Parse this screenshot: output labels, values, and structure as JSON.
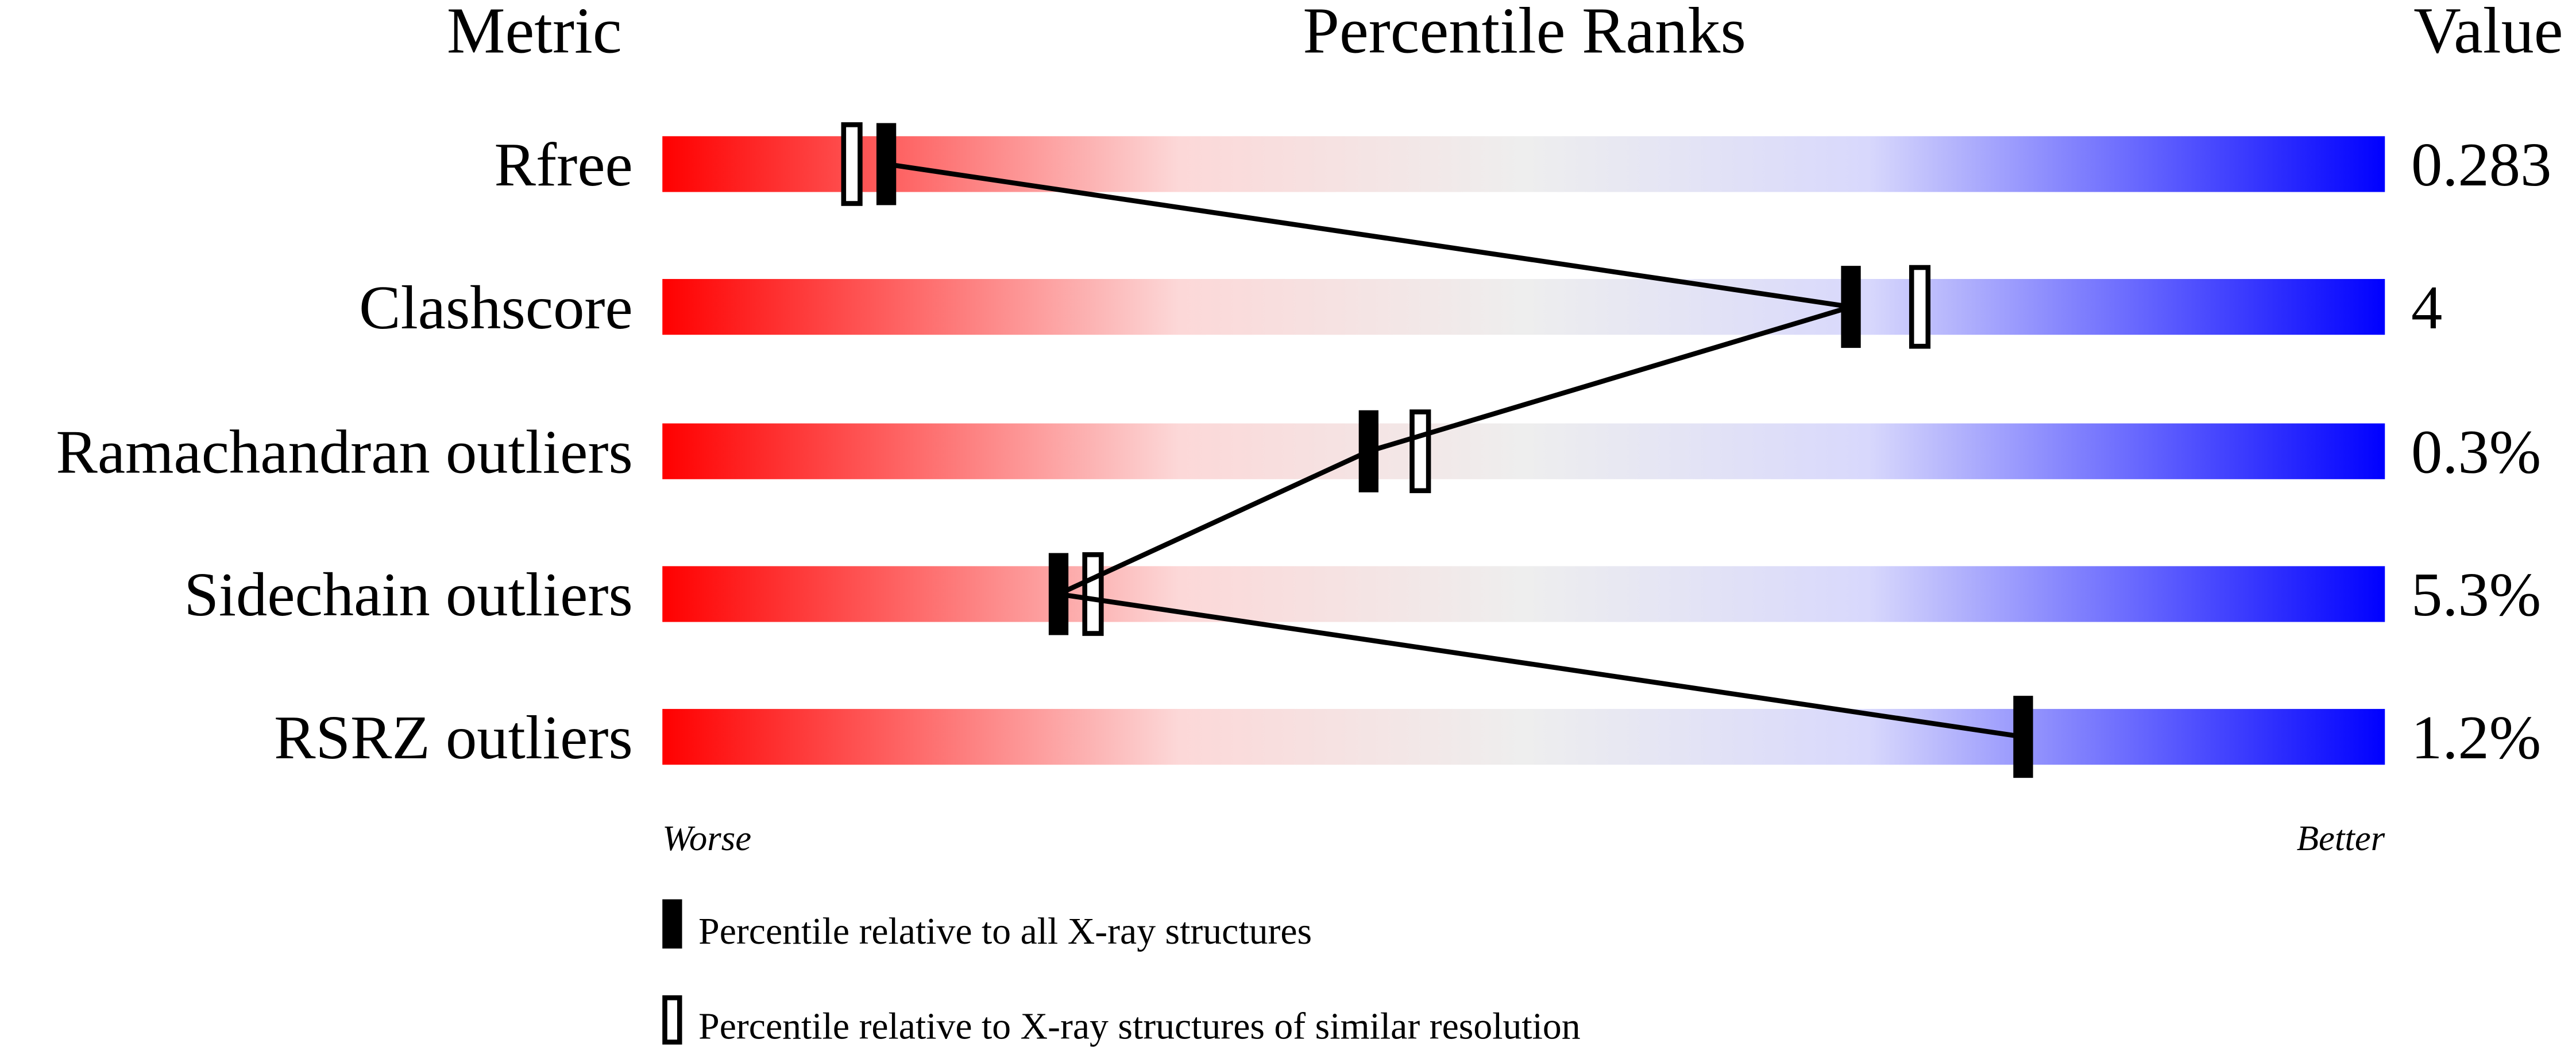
{
  "chart_data": {
    "type": "percentile-slider",
    "headers": {
      "metric": "Metric",
      "ranks": "Percentile Ranks",
      "value": "Value"
    },
    "xlim": [
      0,
      100
    ],
    "axis_labels": {
      "worse": "Worse",
      "better": "Better"
    },
    "gradient_colors": {
      "worse": "#ff0000",
      "middle": "#eeeeee",
      "better": "#0000ff"
    },
    "rows": [
      {
        "metric": "Rfree",
        "value": "0.283",
        "percentile_all": 13,
        "percentile_similar": 11
      },
      {
        "metric": "Clashscore",
        "value": "4",
        "percentile_all": 69,
        "percentile_similar": 73
      },
      {
        "metric": "Ramachandran outliers",
        "value": "0.3%",
        "percentile_all": 41,
        "percentile_similar": 44
      },
      {
        "metric": "Sidechain outliers",
        "value": "5.3%",
        "percentile_all": 23,
        "percentile_similar": 25
      },
      {
        "metric": "RSRZ outliers",
        "value": "1.2%",
        "percentile_all": 79,
        "percentile_similar": null
      }
    ],
    "legend": [
      {
        "marker": "filled",
        "label": "Percentile relative to all X-ray structures"
      },
      {
        "marker": "open",
        "label": "Percentile relative to X-ray structures of similar resolution"
      }
    ]
  }
}
